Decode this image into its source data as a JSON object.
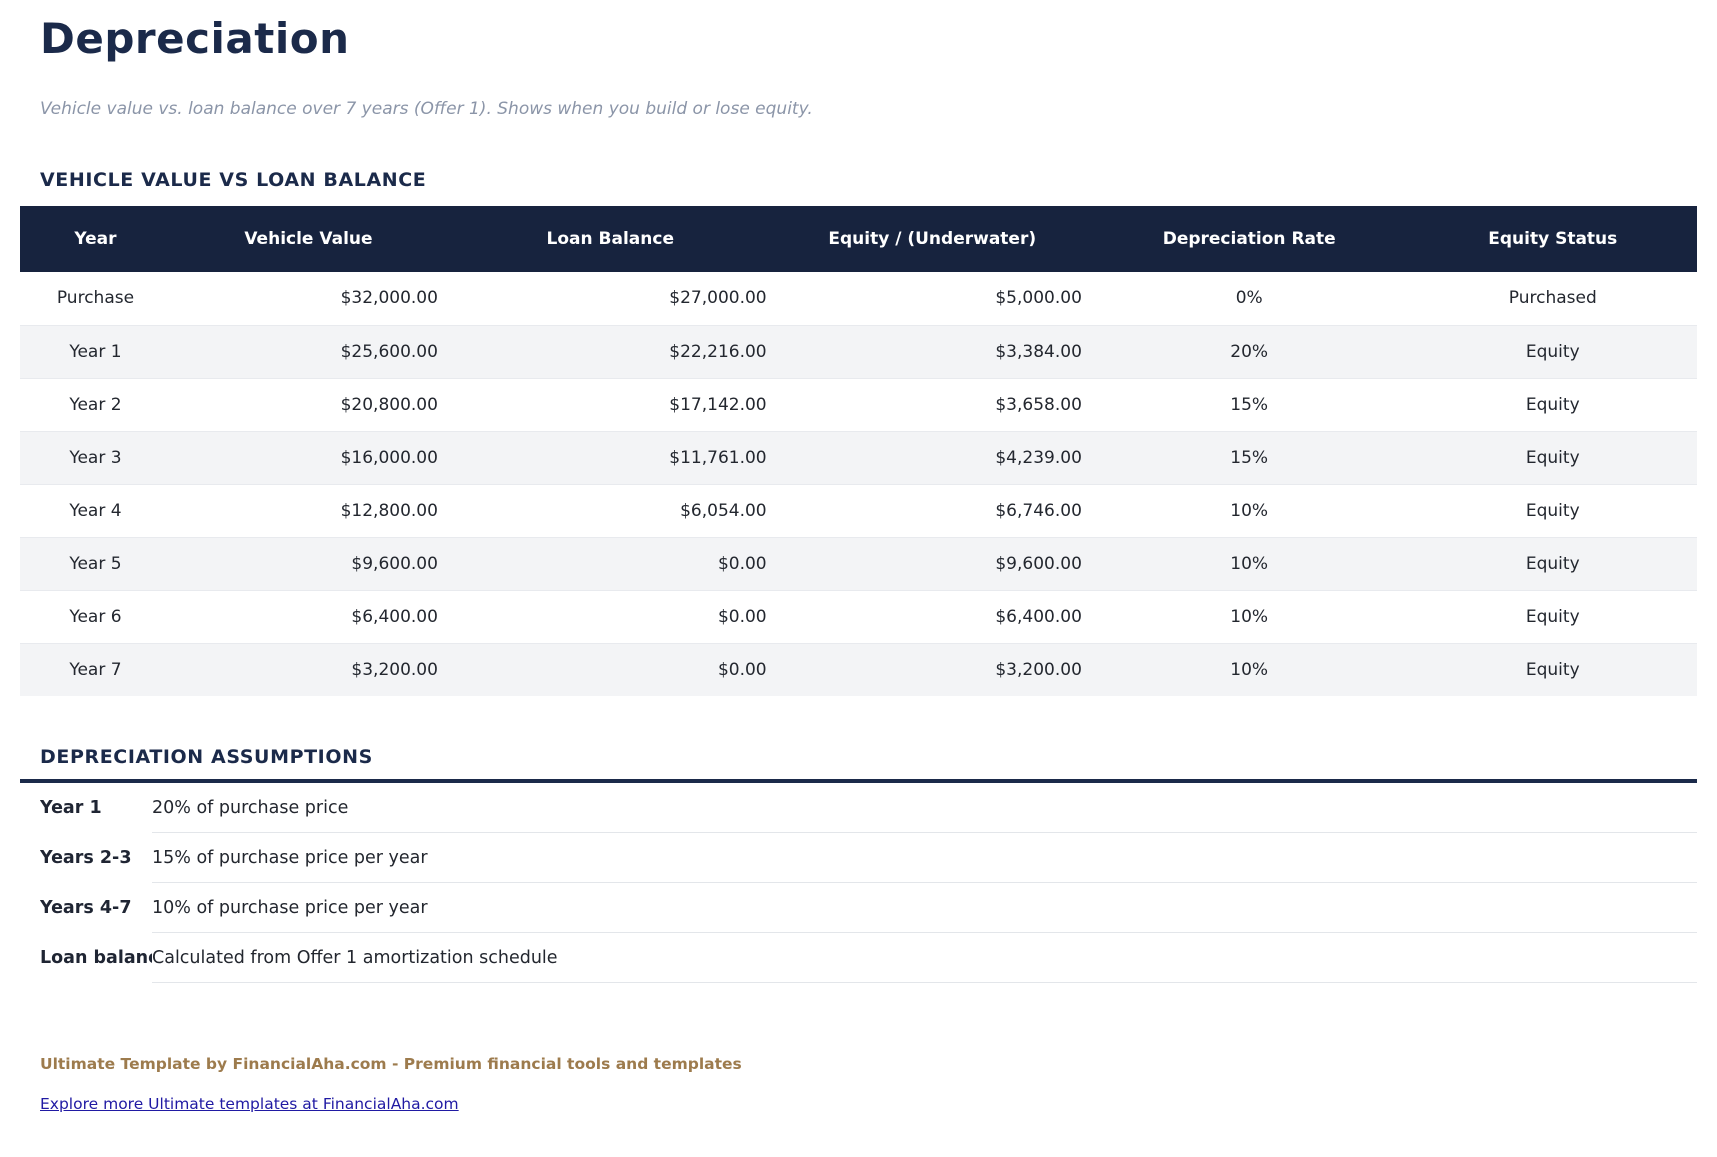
{
  "page": {
    "title": "Depreciation",
    "subtitle": "Vehicle value vs. loan balance over 7 years (Offer 1). Shows when you build or lose equity."
  },
  "colors": {
    "heading_navy": "#1b2a4a",
    "table_header_bg": "#17233e",
    "equity_green": "#0e7c4f",
    "striped_row_bg": "#f3f4f6",
    "footer_gold": "#9d7b4d",
    "link_blue": "#201aa3",
    "subtitle_gray": "#8b95a8"
  },
  "table_section": {
    "heading": "VEHICLE VALUE VS LOAN BALANCE",
    "columns": {
      "year": "Year",
      "vehicle_value": "Vehicle Value",
      "loan_balance": "Loan Balance",
      "equity": "Equity / (Underwater)",
      "depreciation_rate": "Depreciation Rate",
      "equity_status": "Equity Status"
    },
    "rows": [
      {
        "year": "Purchase",
        "vehicle_value": "$32,000.00",
        "loan_balance": "$27,000.00",
        "equity": "$5,000.00",
        "depreciation_rate": "0%",
        "equity_status": "Purchased"
      },
      {
        "year": "Year 1",
        "vehicle_value": "$25,600.00",
        "loan_balance": "$22,216.00",
        "equity": "$3,384.00",
        "depreciation_rate": "20%",
        "equity_status": "Equity"
      },
      {
        "year": "Year 2",
        "vehicle_value": "$20,800.00",
        "loan_balance": "$17,142.00",
        "equity": "$3,658.00",
        "depreciation_rate": "15%",
        "equity_status": "Equity"
      },
      {
        "year": "Year 3",
        "vehicle_value": "$16,000.00",
        "loan_balance": "$11,761.00",
        "equity": "$4,239.00",
        "depreciation_rate": "15%",
        "equity_status": "Equity"
      },
      {
        "year": "Year 4",
        "vehicle_value": "$12,800.00",
        "loan_balance": "$6,054.00",
        "equity": "$6,746.00",
        "depreciation_rate": "10%",
        "equity_status": "Equity"
      },
      {
        "year": "Year 5",
        "vehicle_value": "$9,600.00",
        "loan_balance": "$0.00",
        "equity": "$9,600.00",
        "depreciation_rate": "10%",
        "equity_status": "Equity"
      },
      {
        "year": "Year 6",
        "vehicle_value": "$6,400.00",
        "loan_balance": "$0.00",
        "equity": "$6,400.00",
        "depreciation_rate": "10%",
        "equity_status": "Equity"
      },
      {
        "year": "Year 7",
        "vehicle_value": "$3,200.00",
        "loan_balance": "$0.00",
        "equity": "$3,200.00",
        "depreciation_rate": "10%",
        "equity_status": "Equity"
      }
    ]
  },
  "assumptions_section": {
    "heading": "DEPRECIATION ASSUMPTIONS",
    "items": [
      {
        "label": "Year 1",
        "value": "20% of purchase price"
      },
      {
        "label": "Years 2-3",
        "value": "15% of purchase price per year"
      },
      {
        "label": "Years 4-7",
        "value": "10% of purchase price per year"
      },
      {
        "label": "Loan balance",
        "value": "Calculated from Offer 1 amortization schedule"
      }
    ]
  },
  "footer": {
    "brand_line": "Ultimate Template by FinancialAha.com - Premium financial tools and templates",
    "link_text": "Explore more Ultimate templates at FinancialAha.com"
  }
}
